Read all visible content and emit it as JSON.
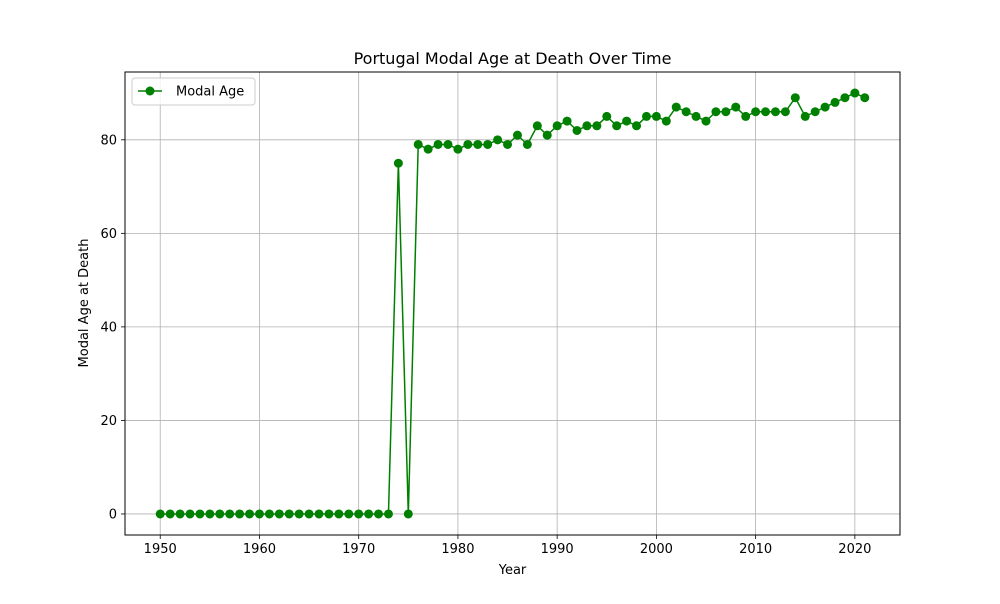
{
  "chart_data": {
    "type": "line",
    "title": "Portugal Modal Age at Death Over Time",
    "xlabel": "Year",
    "ylabel": "Modal Age at Death",
    "xlim": [
      1946.45,
      2024.55
    ],
    "ylim": [
      -4.5,
      94.5
    ],
    "xticks": [
      1950,
      1960,
      1970,
      1980,
      1990,
      2000,
      2010,
      2020
    ],
    "yticks": [
      0,
      20,
      40,
      60,
      80
    ],
    "grid": true,
    "legend_position": "top-left",
    "series": [
      {
        "name": "Modal Age",
        "color": "#008000",
        "marker": "circle",
        "x": [
          1950,
          1951,
          1952,
          1953,
          1954,
          1955,
          1956,
          1957,
          1958,
          1959,
          1960,
          1961,
          1962,
          1963,
          1964,
          1965,
          1966,
          1967,
          1968,
          1969,
          1970,
          1971,
          1972,
          1973,
          1974,
          1975,
          1976,
          1977,
          1978,
          1979,
          1980,
          1981,
          1982,
          1983,
          1984,
          1985,
          1986,
          1987,
          1988,
          1989,
          1990,
          1991,
          1992,
          1993,
          1994,
          1995,
          1996,
          1997,
          1998,
          1999,
          2000,
          2001,
          2002,
          2003,
          2004,
          2005,
          2006,
          2007,
          2008,
          2009,
          2010,
          2011,
          2012,
          2013,
          2014,
          2015,
          2016,
          2017,
          2018,
          2019,
          2020,
          2021
        ],
        "y": [
          0,
          0,
          0,
          0,
          0,
          0,
          0,
          0,
          0,
          0,
          0,
          0,
          0,
          0,
          0,
          0,
          0,
          0,
          0,
          0,
          0,
          0,
          0,
          0,
          75,
          0,
          79,
          78,
          79,
          79,
          78,
          79,
          79,
          79,
          80,
          79,
          81,
          79,
          83,
          81,
          83,
          84,
          82,
          83,
          83,
          85,
          83,
          84,
          83,
          85,
          85,
          84,
          87,
          86,
          85,
          84,
          86,
          86,
          87,
          85,
          86,
          86,
          86,
          86,
          89,
          85,
          86,
          87,
          88,
          89,
          90,
          89
        ]
      }
    ]
  }
}
